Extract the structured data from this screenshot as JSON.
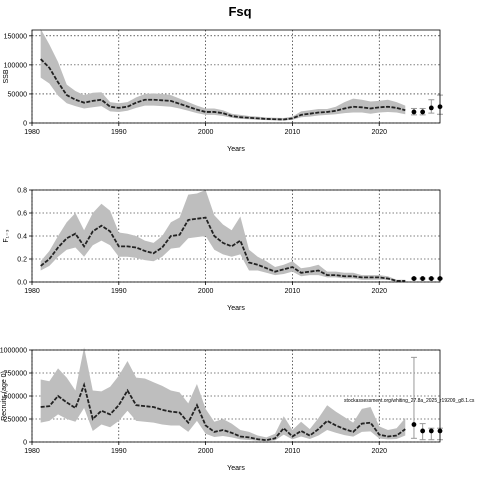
{
  "figure_title": "Fsq",
  "chart_data": [
    {
      "type": "line",
      "ylabel": "SSB",
      "xlabel": "Years",
      "xlim": [
        1980,
        2027
      ],
      "ylim": [
        0,
        160000
      ],
      "xticks": [
        1980,
        1990,
        2000,
        2010,
        2020
      ],
      "xtick_labels": [
        "1980",
        "1990",
        "2000",
        "2010",
        "2020"
      ],
      "yticks": [
        0,
        50000,
        100000,
        150000
      ],
      "ytick_labels": [
        "0",
        "50000",
        "100000",
        "150000"
      ],
      "grid": true,
      "band_color": "#bebebe",
      "line_color": "#222222",
      "x": [
        1981,
        1982,
        1983,
        1984,
        1985,
        1986,
        1987,
        1988,
        1989,
        1990,
        1991,
        1992,
        1993,
        1994,
        1995,
        1996,
        1997,
        1998,
        1999,
        2000,
        2001,
        2002,
        2003,
        2004,
        2005,
        2006,
        2007,
        2008,
        2009,
        2010,
        2011,
        2012,
        2013,
        2014,
        2015,
        2016,
        2017,
        2018,
        2019,
        2020,
        2021,
        2022,
        2023
      ],
      "y": [
        110000,
        95000,
        70000,
        48000,
        40000,
        35000,
        38000,
        40000,
        28000,
        26000,
        28000,
        35000,
        40000,
        40000,
        39000,
        38000,
        33000,
        28000,
        23000,
        19000,
        19000,
        17000,
        12000,
        10000,
        9000,
        8000,
        7000,
        6500,
        6000,
        8000,
        14000,
        16000,
        18000,
        19000,
        21000,
        25000,
        28000,
        27000,
        25000,
        27000,
        28000,
        26000,
        22000
      ],
      "upper": [
        162000,
        135000,
        105000,
        66000,
        55000,
        48000,
        52000,
        53000,
        36000,
        34000,
        36000,
        44000,
        50000,
        51000,
        50000,
        48000,
        42000,
        36000,
        30000,
        25000,
        25000,
        22000,
        16000,
        14000,
        12000,
        11000,
        9500,
        9000,
        8500,
        11000,
        20000,
        22000,
        24000,
        24000,
        28000,
        36000,
        42000,
        40000,
        37000,
        38000,
        40000,
        36000,
        30000
      ],
      "lower": [
        78000,
        68000,
        47000,
        34000,
        29000,
        25000,
        27000,
        29000,
        20000,
        19000,
        21000,
        26000,
        30000,
        30000,
        29000,
        28000,
        25000,
        21000,
        17000,
        14000,
        14000,
        12000,
        9000,
        7000,
        6500,
        5500,
        5000,
        4500,
        4200,
        5500,
        10000,
        11000,
        13000,
        14000,
        15000,
        17000,
        18000,
        18000,
        16000,
        18000,
        19000,
        18000,
        15000
      ],
      "projection": {
        "x": [
          2024,
          2025,
          2026,
          2027
        ],
        "y": [
          19000,
          19000,
          26000,
          28000
        ],
        "upper": [
          25000,
          25000,
          40000,
          48000
        ],
        "lower": [
          14000,
          14000,
          17000,
          15000
        ]
      }
    },
    {
      "type": "line",
      "ylabel": "F₁₋₃",
      "xlabel": "Years",
      "xlim": [
        1980,
        2027
      ],
      "ylim": [
        0,
        0.8
      ],
      "xticks": [
        1980,
        1990,
        2000,
        2010,
        2020
      ],
      "xtick_labels": [
        "1980",
        "1990",
        "2000",
        "2010",
        "2020"
      ],
      "yticks": [
        0,
        0.2,
        0.4,
        0.6,
        0.8
      ],
      "ytick_labels": [
        "0.0",
        "0.2",
        "0.4",
        "0.6",
        "0.8"
      ],
      "grid": true,
      "band_color": "#bebebe",
      "line_color": "#222222",
      "x": [
        1981,
        1982,
        1983,
        1984,
        1985,
        1986,
        1987,
        1988,
        1989,
        1990,
        1991,
        1992,
        1993,
        1994,
        1995,
        1996,
        1997,
        1998,
        1999,
        2000,
        2001,
        2002,
        2003,
        2004,
        2005,
        2006,
        2007,
        2008,
        2009,
        2010,
        2011,
        2012,
        2013,
        2014,
        2015,
        2016,
        2017,
        2018,
        2019,
        2020,
        2021,
        2022,
        2023
      ],
      "y": [
        0.14,
        0.2,
        0.3,
        0.38,
        0.42,
        0.31,
        0.44,
        0.49,
        0.44,
        0.31,
        0.31,
        0.3,
        0.27,
        0.25,
        0.3,
        0.4,
        0.41,
        0.54,
        0.55,
        0.56,
        0.4,
        0.34,
        0.31,
        0.36,
        0.17,
        0.15,
        0.12,
        0.09,
        0.11,
        0.13,
        0.08,
        0.09,
        0.1,
        0.06,
        0.06,
        0.05,
        0.05,
        0.04,
        0.04,
        0.04,
        0.03,
        0.01,
        0.01
      ],
      "upper": [
        0.18,
        0.27,
        0.4,
        0.52,
        0.6,
        0.45,
        0.6,
        0.68,
        0.62,
        0.43,
        0.42,
        0.4,
        0.36,
        0.34,
        0.4,
        0.52,
        0.56,
        0.76,
        0.77,
        0.8,
        0.58,
        0.5,
        0.45,
        0.57,
        0.28,
        0.22,
        0.18,
        0.13,
        0.15,
        0.18,
        0.12,
        0.13,
        0.15,
        0.09,
        0.09,
        0.08,
        0.08,
        0.06,
        0.06,
        0.06,
        0.05,
        0.02,
        0.02
      ],
      "lower": [
        0.1,
        0.14,
        0.22,
        0.28,
        0.3,
        0.22,
        0.32,
        0.36,
        0.32,
        0.22,
        0.22,
        0.21,
        0.19,
        0.18,
        0.22,
        0.29,
        0.3,
        0.38,
        0.39,
        0.4,
        0.28,
        0.24,
        0.22,
        0.24,
        0.1,
        0.1,
        0.08,
        0.06,
        0.07,
        0.09,
        0.05,
        0.06,
        0.06,
        0.04,
        0.04,
        0.03,
        0.03,
        0.02,
        0.02,
        0.02,
        0.02,
        0.005,
        0.005
      ],
      "projection": {
        "x": [
          2024,
          2025,
          2026,
          2027
        ],
        "y": [
          0.03,
          0.03,
          0.03,
          0.03
        ],
        "upper": [
          0.035,
          0.035,
          0.035,
          0.035
        ],
        "lower": [
          0.025,
          0.025,
          0.025,
          0.025
        ]
      }
    },
    {
      "type": "line",
      "ylabel": "Recruits (age 0)",
      "xlabel": "Years",
      "xlim": [
        1980,
        2027
      ],
      "ylim": [
        0,
        1000000
      ],
      "xticks": [
        1980,
        1990,
        2000,
        2010,
        2020
      ],
      "xtick_labels": [
        "1980",
        "1990",
        "2000",
        "2010",
        "2020"
      ],
      "yticks": [
        0,
        250000,
        500000,
        750000,
        1000000
      ],
      "ytick_labels": [
        "0",
        "250000",
        "500000",
        "750000",
        "1000000"
      ],
      "grid": true,
      "band_color": "#bebebe",
      "line_color": "#222222",
      "annotation": "stockassessment.org/whiting_27.8a_2025_r19209_g8.1.cs",
      "x": [
        1981,
        1982,
        1983,
        1984,
        1985,
        1986,
        1987,
        1988,
        1989,
        1990,
        1991,
        1992,
        1993,
        1994,
        1995,
        1996,
        1997,
        1998,
        1999,
        2000,
        2001,
        2002,
        2003,
        2004,
        2005,
        2006,
        2007,
        2008,
        2009,
        2010,
        2011,
        2012,
        2013,
        2014,
        2015,
        2016,
        2017,
        2018,
        2019,
        2020,
        2021,
        2022,
        2023
      ],
      "y": [
        380000,
        390000,
        500000,
        430000,
        370000,
        620000,
        250000,
        340000,
        300000,
        400000,
        560000,
        400000,
        390000,
        380000,
        350000,
        330000,
        320000,
        210000,
        400000,
        180000,
        110000,
        130000,
        100000,
        60000,
        50000,
        30000,
        20000,
        40000,
        150000,
        60000,
        120000,
        70000,
        140000,
        230000,
        180000,
        140000,
        110000,
        200000,
        210000,
        80000,
        60000,
        70000,
        140000
      ],
      "upper": [
        680000,
        660000,
        800000,
        700000,
        560000,
        1030000,
        560000,
        550000,
        600000,
        720000,
        880000,
        700000,
        690000,
        650000,
        610000,
        560000,
        540000,
        420000,
        630000,
        360000,
        220000,
        250000,
        200000,
        130000,
        110000,
        70000,
        50000,
        90000,
        280000,
        130000,
        220000,
        140000,
        260000,
        400000,
        330000,
        270000,
        210000,
        360000,
        380000,
        170000,
        130000,
        150000,
        260000
      ],
      "lower": [
        210000,
        230000,
        300000,
        250000,
        220000,
        370000,
        120000,
        190000,
        160000,
        230000,
        340000,
        230000,
        220000,
        210000,
        190000,
        180000,
        180000,
        110000,
        230000,
        90000,
        55000,
        65000,
        50000,
        28000,
        22000,
        13000,
        9000,
        18000,
        80000,
        28000,
        60000,
        32000,
        70000,
        130000,
        100000,
        75000,
        58000,
        110000,
        115000,
        38000,
        28000,
        32000,
        70000
      ],
      "projection": {
        "x": [
          2024,
          2025,
          2026,
          2027
        ],
        "y": [
          190000,
          120000,
          120000,
          120000
        ],
        "upper": [
          920000,
          200000,
          150000,
          150000
        ],
        "lower": [
          40000,
          25000,
          25000,
          25000
        ]
      }
    }
  ]
}
